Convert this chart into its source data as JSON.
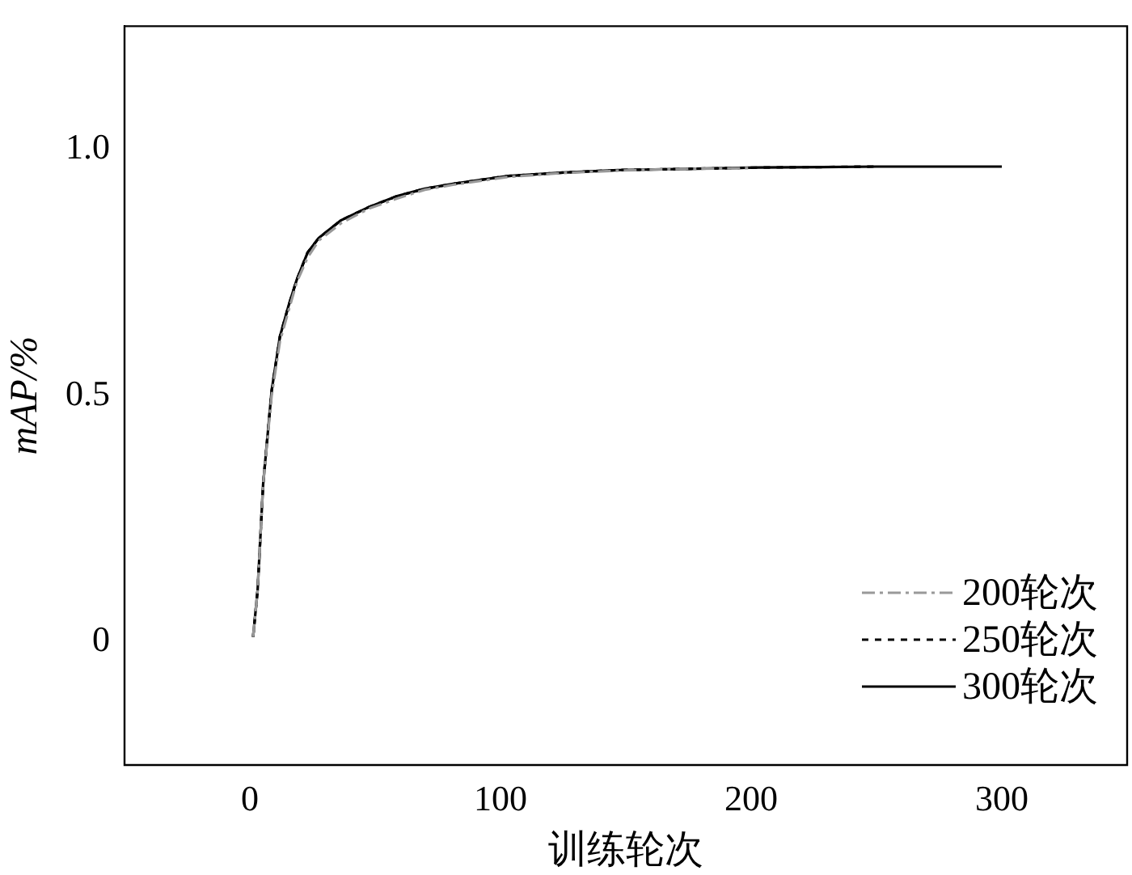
{
  "chart_data": {
    "type": "line",
    "xlabel": "训练轮次",
    "ylabel": "mAP/%",
    "xlim": [
      -50,
      350
    ],
    "ylim": [
      -0.25,
      1.25
    ],
    "xticks": [
      0,
      100,
      200,
      300
    ],
    "yticks": [
      0,
      {
        "value": 0.5,
        "label": "0.5"
      },
      {
        "value": 1,
        "label": "1.0"
      }
    ],
    "grid": false,
    "legend": "bottom right",
    "marker": "none",
    "series": [
      {
        "name": "200轮次",
        "color": "#999999",
        "line_style": "dashed",
        "x": [
          1.3,
          3.1,
          5.3,
          8.7,
          12,
          15.3,
          18.7,
          23,
          27.5,
          36.4,
          47.6,
          58.7,
          69.8,
          81,
          103,
          125,
          147.6,
          170,
          200
        ],
        "values": [
          0.01,
          0.105,
          0.32,
          0.5,
          0.61,
          0.67,
          0.73,
          0.78,
          0.815,
          0.85,
          0.88,
          0.9,
          0.918,
          0.928,
          0.944,
          0.952,
          0.957,
          0.96,
          0.962
        ]
      },
      {
        "name": "250轮次",
        "color": "#000000",
        "line_style": "dotted",
        "x": [
          1.3,
          3.1,
          5.3,
          8.7,
          12,
          15.3,
          18.7,
          23,
          27.5,
          36.4,
          47.6,
          58.7,
          69.8,
          81,
          103,
          125,
          147.6,
          170,
          203,
          250
        ],
        "values": [
          0.01,
          0.105,
          0.32,
          0.51,
          0.62,
          0.68,
          0.735,
          0.79,
          0.82,
          0.856,
          0.883,
          0.905,
          0.92,
          0.93,
          0.946,
          0.953,
          0.958,
          0.96,
          0.963,
          0.965
        ]
      },
      {
        "name": "300轮次",
        "color": "#000000",
        "line_style": "solid",
        "x": [
          1.3,
          3.1,
          5.3,
          8.7,
          12,
          15.3,
          18.7,
          23,
          27.5,
          36.4,
          47.6,
          58.7,
          69.8,
          81,
          103,
          125,
          147.6,
          170,
          203,
          250,
          300
        ],
        "values": [
          0.01,
          0.105,
          0.32,
          0.51,
          0.62,
          0.68,
          0.735,
          0.79,
          0.82,
          0.856,
          0.883,
          0.905,
          0.92,
          0.93,
          0.946,
          0.953,
          0.958,
          0.96,
          0.963,
          0.965,
          0.965
        ]
      }
    ]
  }
}
